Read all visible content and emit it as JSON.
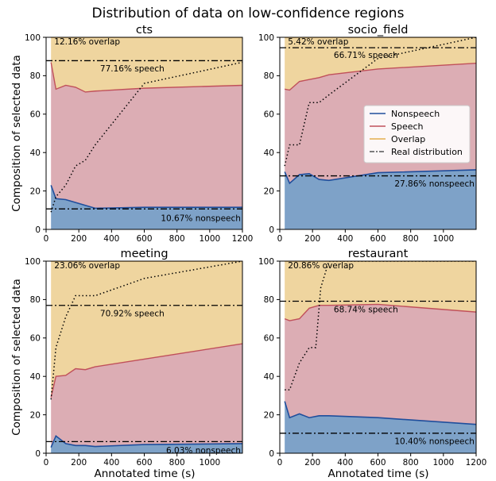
{
  "figure": {
    "title": "Distribution of data on low-confidence regions",
    "ylabel": "Composition of selected data",
    "xlabel": "Annotated time (s)"
  },
  "legend": {
    "entries": [
      {
        "label": "Nonspeech",
        "color": "#1f4e9c",
        "style": "solid"
      },
      {
        "label": "Speech",
        "color": "#c0505a",
        "style": "solid"
      },
      {
        "label": "Overlap",
        "color": "#e3ad4e",
        "style": "solid"
      },
      {
        "label": "Real distribution",
        "color": "#555555",
        "style": "dashdot"
      }
    ]
  },
  "colors": {
    "nonspeech_fill": "#7ea2c8",
    "speech_fill": "#dcadb4",
    "overlap_fill": "#efd59f",
    "nonspeech_line": "#1f4e9c",
    "speech_line": "#c0505a",
    "overlap_line": "#e3ad4e"
  },
  "chart_data": [
    {
      "type": "area",
      "title": "cts",
      "xlim": [
        0,
        1200
      ],
      "ylim": [
        0,
        100
      ],
      "xticks": [
        0,
        200,
        400,
        600,
        800,
        1000,
        1200
      ],
      "yticks": [
        0,
        20,
        40,
        60,
        80,
        100
      ],
      "x": [
        30,
        60,
        120,
        180,
        240,
        300,
        600,
        1200
      ],
      "nonspeech_pct": [
        23,
        16,
        15.5,
        14,
        12.5,
        11,
        11.5,
        11.5
      ],
      "nonspeech_plus_speech_pct": [
        87,
        73,
        75,
        74,
        71.5,
        72,
        73.5,
        75
      ],
      "dotted_x": [
        30,
        60,
        120,
        180,
        240,
        300,
        600,
        1200
      ],
      "dotted_y": [
        9,
        17,
        23,
        33,
        36,
        44,
        76,
        87
      ],
      "real_distribution": {
        "nonspeech_pct": 10.67,
        "speech_pct": 77.16,
        "overlap_pct": 12.16
      },
      "annotations": [
        "12.16% overlap",
        "77.16% speech",
        "10.67% nonspeech"
      ]
    },
    {
      "type": "area",
      "title": "socio_field",
      "xlim": [
        0,
        1200
      ],
      "ylim": [
        0,
        100
      ],
      "xticks": [
        0,
        200,
        400,
        600,
        800,
        1000
      ],
      "yticks": [
        0,
        20,
        40,
        60,
        80,
        100
      ],
      "x": [
        30,
        60,
        120,
        180,
        240,
        300,
        600,
        1200
      ],
      "nonspeech_pct": [
        30,
        24,
        28.5,
        29,
        26,
        25.5,
        29.5,
        31
      ],
      "nonspeech_plus_speech_pct": [
        73,
        72.5,
        77,
        78,
        79,
        80.5,
        83.5,
        86.5
      ],
      "dotted_x": [
        30,
        60,
        120,
        180,
        240,
        300,
        600,
        1200
      ],
      "dotted_y": [
        33,
        44,
        44,
        66,
        66,
        70,
        89,
        100
      ],
      "real_distribution": {
        "nonspeech_pct": 27.86,
        "speech_pct": 66.71,
        "overlap_pct": 5.42
      },
      "annotations": [
        "5.42% overlap",
        "66.71% speech",
        "27.86% nonspeech"
      ]
    },
    {
      "type": "area",
      "title": "meeting",
      "xlim": [
        0,
        1200
      ],
      "ylim": [
        0,
        100
      ],
      "xticks": [
        0,
        200,
        400,
        600,
        800,
        1000
      ],
      "yticks": [
        0,
        20,
        40,
        60,
        80,
        100
      ],
      "x": [
        30,
        60,
        120,
        180,
        240,
        300,
        600,
        1200
      ],
      "nonspeech_pct": [
        3,
        9,
        5,
        4,
        4,
        3.5,
        4.5,
        5
      ],
      "nonspeech_plus_speech_pct": [
        29,
        40,
        40.5,
        44,
        43.5,
        45,
        49,
        57
      ],
      "dotted_x": [
        30,
        60,
        120,
        180,
        240,
        300,
        600,
        1200
      ],
      "dotted_y": [
        28,
        55,
        71,
        82,
        82,
        82,
        91,
        100
      ],
      "real_distribution": {
        "nonspeech_pct": 6.03,
        "speech_pct": 70.92,
        "overlap_pct": 23.06
      },
      "annotations": [
        "23.06% overlap",
        "70.92% speech",
        "6.03% nonspeech"
      ]
    },
    {
      "type": "area",
      "title": "restaurant",
      "xlim": [
        0,
        1200
      ],
      "ylim": [
        0,
        100
      ],
      "xticks": [
        0,
        200,
        400,
        600,
        800,
        1000,
        1200
      ],
      "yticks": [
        0,
        20,
        40,
        60,
        80,
        100
      ],
      "x": [
        30,
        60,
        120,
        180,
        240,
        300,
        600,
        1200
      ],
      "nonspeech_pct": [
        27,
        18.5,
        20.5,
        18.5,
        19.5,
        19.5,
        18.5,
        15
      ],
      "nonspeech_plus_speech_pct": [
        70,
        69,
        70,
        75.5,
        77,
        77,
        77.5,
        73.5
      ],
      "dotted_x": [
        30,
        60,
        120,
        180,
        220,
        250,
        300,
        1200
      ],
      "dotted_y": [
        33,
        33,
        47,
        55,
        55,
        86,
        100,
        100
      ],
      "real_distribution": {
        "nonspeech_pct": 10.4,
        "speech_pct": 68.74,
        "overlap_pct": 20.86
      },
      "annotations": [
        "20.86% overlap",
        "68.74% speech",
        "10.40% nonspeech"
      ]
    }
  ]
}
